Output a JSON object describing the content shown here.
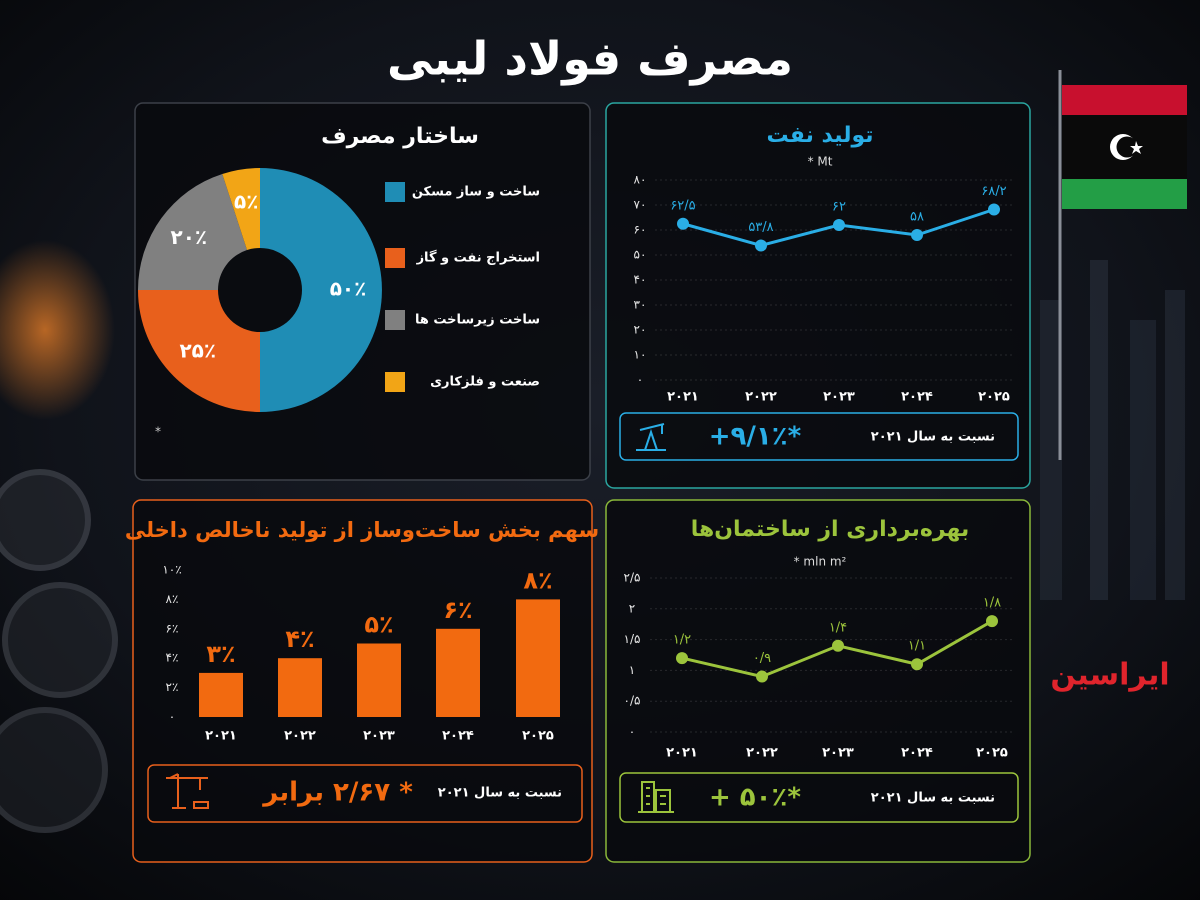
{
  "title": "مصرف فولاد لیبی",
  "brand": "ایراسین",
  "chart_data": [
    {
      "type": "pie",
      "title": "ساختار مصرف",
      "note": "*",
      "categories": [
        "ساخت و ساز مسکن",
        "استخراج نفت و گاز",
        "ساخت زیرساخت ها",
        "صنعت و فلزکاری"
      ],
      "values": [
        50,
        25,
        20,
        5
      ],
      "value_labels": [
        "۵۰٪",
        "۲۵٪",
        "۲۰٪",
        "۵٪"
      ],
      "colors": [
        "#1f8db5",
        "#e8601c",
        "#808080",
        "#f2a516"
      ]
    },
    {
      "type": "line",
      "title": "تولید نفت",
      "subtitle": "* Mt",
      "categories": [
        "۲۰۲۱",
        "۲۰۲۲",
        "۲۰۲۳",
        "۲۰۲۴",
        "۲۰۲۵"
      ],
      "values": [
        62.5,
        53.8,
        62,
        58,
        68.2
      ],
      "value_labels": [
        "۶۲/۵",
        "۵۳/۸",
        "۶۲",
        "۵۸",
        "۶۸/۲"
      ],
      "color": "#2aaee6",
      "ylim": [
        0,
        80
      ],
      "yticks": [
        {
          "value": 0,
          "label": "۰"
        },
        {
          "value": 10,
          "label": "۱۰"
        },
        {
          "value": 20,
          "label": "۲۰"
        },
        {
          "value": 30,
          "label": "۳۰"
        },
        {
          "value": 40,
          "label": "۴۰"
        },
        {
          "value": 50,
          "label": "۵۰"
        },
        {
          "value": 60,
          "label": "۶۰"
        },
        {
          "value": 70,
          "label": "۷۰"
        },
        {
          "value": 80,
          "label": "۸۰"
        }
      ],
      "grid": true,
      "footer": {
        "change": "+۹/۱٪*",
        "caption": "نسبت به سال ۲۰۲۱"
      }
    },
    {
      "type": "bar",
      "title": "سهم بخش ساخت‌وساز از تولید ناخالص داخلی",
      "categories": [
        "۲۰۲۱",
        "۲۰۲۲",
        "۲۰۲۳",
        "۲۰۲۴",
        "۲۰۲۵"
      ],
      "values": [
        3,
        4,
        5,
        6,
        8
      ],
      "value_labels": [
        "۳٪",
        "۴٪",
        "۵٪",
        "۶٪",
        "۸٪"
      ],
      "color": "#f26a10",
      "ylim": [
        0,
        10
      ],
      "yticks": [
        {
          "value": 0,
          "label": "۰"
        },
        {
          "value": 2,
          "label": "۲٪"
        },
        {
          "value": 4,
          "label": "۴٪"
        },
        {
          "value": 6,
          "label": "۶٪"
        },
        {
          "value": 8,
          "label": "۸٪"
        },
        {
          "value": 10,
          "label": "۱۰٪"
        }
      ],
      "grid": false,
      "footer": {
        "change": "* ۲/۶۷ برابر",
        "caption": "نسبت به سال ۲۰۲۱"
      }
    },
    {
      "type": "line",
      "title": "بهره‌برداری از ساختمان‌ها",
      "subtitle": "* mln m²",
      "categories": [
        "۲۰۲۱",
        "۲۰۲۲",
        "۲۰۲۳",
        "۲۰۲۴",
        "۲۰۲۵"
      ],
      "values": [
        1.2,
        0.9,
        1.4,
        1.1,
        1.8
      ],
      "value_labels": [
        "۱/۲",
        "۰/۹",
        "۱/۴",
        "۱/۱",
        "۱/۸"
      ],
      "color": "#9cc43c",
      "ylim": [
        0,
        2.5
      ],
      "yticks": [
        {
          "value": 0,
          "label": "۰"
        },
        {
          "value": 0.5,
          "label": "۰/۵"
        },
        {
          "value": 1,
          "label": "۱"
        },
        {
          "value": 1.5,
          "label": "۱/۵"
        },
        {
          "value": 2,
          "label": "۲"
        },
        {
          "value": 2.5,
          "label": "۲/۵"
        }
      ],
      "grid": true,
      "footer": {
        "change": "+ ۵۰٪*",
        "caption": "نسبت به سال ۲۰۲۱"
      }
    }
  ]
}
